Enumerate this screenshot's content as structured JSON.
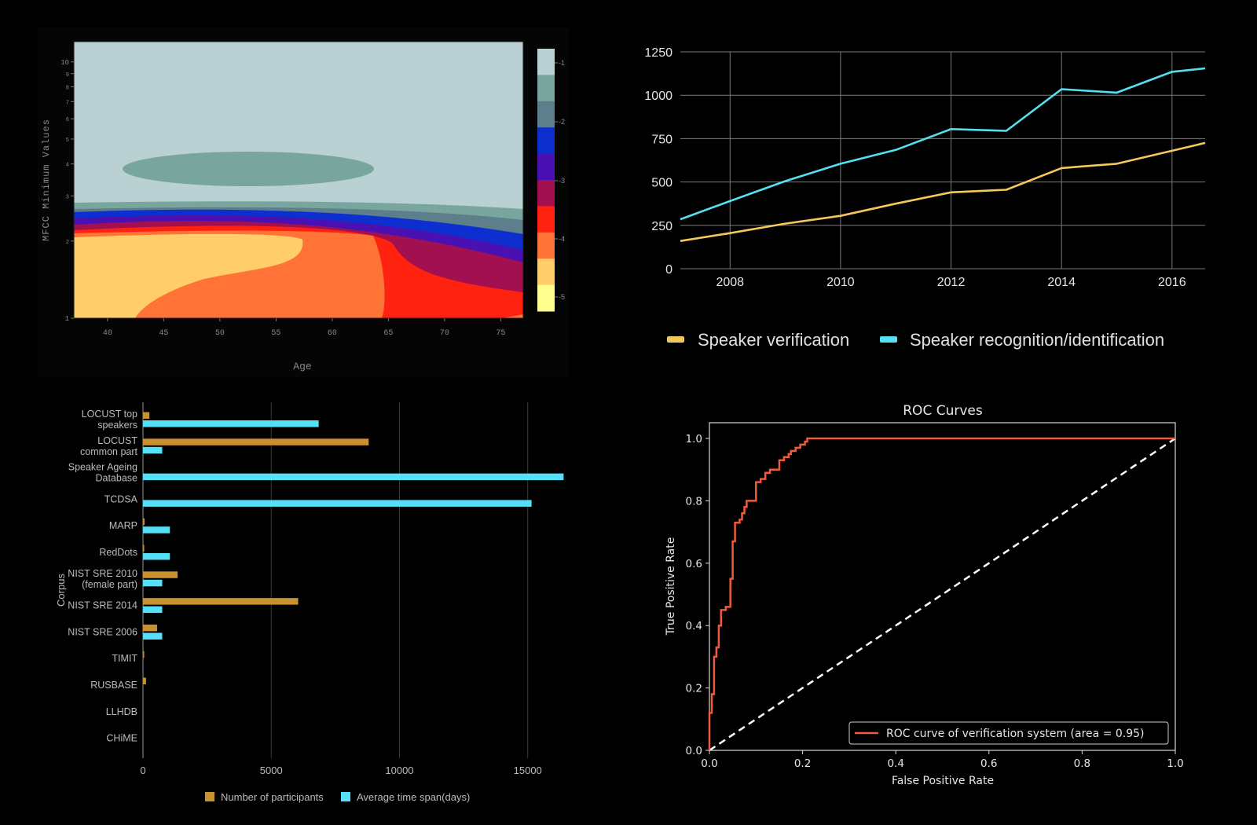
{
  "chart_data": [
    {
      "type": "contour",
      "ylabel": "MFCC Minimum Values",
      "xlabel": "Age",
      "x_ticks": [
        "40",
        "45",
        "50",
        "55",
        "60",
        "65",
        "70",
        "75"
      ],
      "y_ticks": [
        "1",
        "2",
        "3",
        "4",
        "5",
        "6",
        "7",
        "8",
        "9",
        "10"
      ],
      "y_scale": "log",
      "xlim": [
        37,
        77
      ],
      "ylim": [
        1,
        12
      ],
      "colorbar_ticks": [
        "-1",
        "-2",
        "-3",
        "-4",
        "-5"
      ],
      "levels": [
        "#b9d1d2",
        "#79a59f",
        "#5d7f8b",
        "#0e2fd0",
        "#4a10b1",
        "#a3104f",
        "#ff2210",
        "#ff7436",
        "#ffcd6a",
        "#ffff8f"
      ]
    },
    {
      "type": "line",
      "title": "",
      "x_ticks": [
        "2008",
        "2010",
        "2012",
        "2014",
        "2016"
      ],
      "y_ticks": [
        "0",
        "250",
        "500",
        "750",
        "1000",
        "1250"
      ],
      "ylim": [
        0,
        1250
      ],
      "xlim": [
        2007.1,
        2016.6
      ],
      "x": [
        2007.1,
        2008,
        2009,
        2010,
        2011,
        2012,
        2013,
        2014,
        2015,
        2016,
        2016.6
      ],
      "series": [
        {
          "name": "Speaker verification",
          "color": "#f5c85a",
          "values": [
            160,
            205,
            260,
            305,
            375,
            440,
            455,
            580,
            605,
            680,
            725
          ]
        },
        {
          "name": "Speaker recognition/identification",
          "color": "#55e0f0",
          "values": [
            285,
            390,
            505,
            605,
            685,
            805,
            795,
            1035,
            1015,
            1135,
            1155
          ]
        }
      ]
    },
    {
      "type": "bar",
      "orientation": "horizontal",
      "ylabel": "Corpus",
      "categories": [
        "LOCUST top speakers",
        "LOCUST common part",
        "Speaker Ageing Database",
        "TCDSA",
        "MARP",
        "RedDots",
        "NIST SRE 2010 (female part)",
        "NIST SRE 2014",
        "NIST SRE 2006",
        "TIMIT",
        "RUSBASE",
        "LLHDB",
        "CHiME"
      ],
      "category_lines": [
        [
          "LOCUST top",
          "speakers"
        ],
        [
          "LOCUST",
          "common part"
        ],
        [
          "Speaker Ageing",
          "Database"
        ],
        [
          "TCDSA"
        ],
        [
          "MARP"
        ],
        [
          "RedDots"
        ],
        [
          "NIST SRE 2010",
          "(female part)"
        ],
        [
          "NIST SRE 2014"
        ],
        [
          "NIST SRE 2006"
        ],
        [
          "TIMIT"
        ],
        [
          "RUSBASE"
        ],
        [
          "LLHDB"
        ],
        [
          "CHiME"
        ]
      ],
      "x_ticks": [
        "0",
        "5000",
        "10000",
        "15000"
      ],
      "xlim": [
        0,
        17000
      ],
      "series": [
        {
          "name": "Number of participants",
          "color": "#c9902f",
          "values": [
            250,
            8800,
            0,
            0,
            60,
            30,
            1350,
            6050,
            550,
            30,
            120,
            0,
            0
          ]
        },
        {
          "name": "Average time span(days)",
          "color": "#55e0f8",
          "values": [
            6850,
            750,
            16400,
            15150,
            1050,
            1050,
            750,
            750,
            750,
            0,
            0,
            0,
            0
          ]
        }
      ]
    },
    {
      "type": "line",
      "title": "ROC Curves",
      "xlabel": "False Positive Rate",
      "ylabel": "True Positive Rate",
      "x_ticks": [
        "0.0",
        "0.2",
        "0.4",
        "0.6",
        "0.8",
        "1.0"
      ],
      "y_ticks": [
        "0.0",
        "0.2",
        "0.4",
        "0.6",
        "0.8",
        "1.0"
      ],
      "xlim": [
        0,
        1
      ],
      "ylim": [
        0,
        1
      ],
      "legend": "ROC curve of verification system (area = 0.95)",
      "legend_position": "lower right",
      "roc_color": "#f05a3c",
      "fpr": [
        0,
        0,
        0.005,
        0.005,
        0.01,
        0.01,
        0.015,
        0.015,
        0.02,
        0.02,
        0.025,
        0.025,
        0.035,
        0.035,
        0.045,
        0.045,
        0.05,
        0.05,
        0.055,
        0.055,
        0.065,
        0.065,
        0.07,
        0.07,
        0.075,
        0.075,
        0.08,
        0.08,
        0.1,
        0.1,
        0.11,
        0.11,
        0.12,
        0.12,
        0.13,
        0.13,
        0.15,
        0.15,
        0.16,
        0.16,
        0.17,
        0.17,
        0.175,
        0.175,
        0.185,
        0.185,
        0.195,
        0.195,
        0.205,
        0.205,
        0.21,
        0.21,
        1.0
      ],
      "tpr": [
        0,
        0.12,
        0.12,
        0.18,
        0.18,
        0.3,
        0.3,
        0.33,
        0.33,
        0.4,
        0.4,
        0.45,
        0.45,
        0.46,
        0.46,
        0.55,
        0.55,
        0.67,
        0.67,
        0.73,
        0.73,
        0.74,
        0.74,
        0.76,
        0.76,
        0.78,
        0.78,
        0.8,
        0.8,
        0.86,
        0.86,
        0.87,
        0.87,
        0.89,
        0.89,
        0.9,
        0.9,
        0.93,
        0.93,
        0.94,
        0.94,
        0.95,
        0.95,
        0.96,
        0.96,
        0.97,
        0.97,
        0.98,
        0.98,
        0.99,
        0.99,
        1.0,
        1.0
      ]
    }
  ]
}
